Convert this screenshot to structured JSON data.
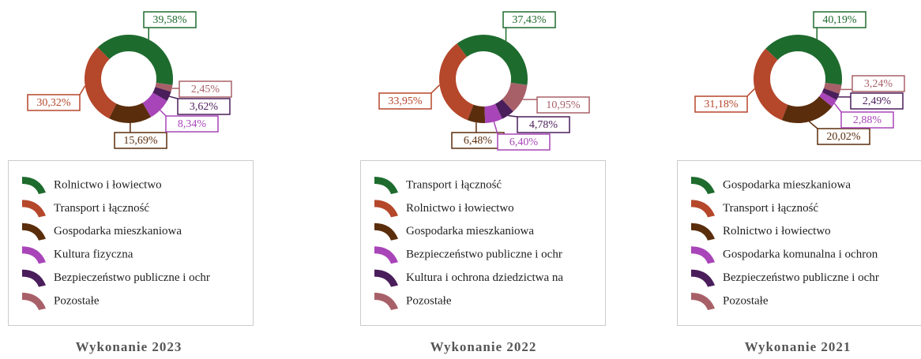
{
  "chart_data": [
    {
      "type": "pie",
      "title": "Wykonanie 2023",
      "categories": [
        "Rolnictwo i łowiectwo",
        "Transport i łączność",
        "Gospodarka mieszkaniowa",
        "Kultura fizyczna",
        "Bezpieczeństwo publiczne i ochr",
        "Pozostałe"
      ],
      "values": [
        39.58,
        30.32,
        15.69,
        8.34,
        3.62,
        2.45
      ],
      "value_labels": [
        "39,58%",
        "30,32%",
        "15,69%",
        "8,34%",
        "3,62%",
        "2,45%"
      ],
      "colors": [
        "#1e6b2e",
        "#b5472b",
        "#5a2d0c",
        "#a845b8",
        "#4a1e5a",
        "#a86068"
      ]
    },
    {
      "type": "pie",
      "title": "Wykonanie 2022",
      "categories": [
        "Transport i łączność",
        "Rolnictwo i łowiectwo",
        "Gospodarka mieszkaniowa",
        "Bezpieczeństwo publiczne i ochr",
        "Kultura i ochrona dziedzictwa na",
        "Pozostałe"
      ],
      "values": [
        37.43,
        33.95,
        6.48,
        6.4,
        4.78,
        10.95
      ],
      "value_labels": [
        "37,43%",
        "33,95%",
        "6,48%",
        "6,40%",
        "4,78%",
        "10,95%"
      ],
      "colors": [
        "#1e6b2e",
        "#b5472b",
        "#5a2d0c",
        "#a845b8",
        "#4a1e5a",
        "#a86068"
      ]
    },
    {
      "type": "pie",
      "title": "Wykonanie 2021",
      "categories": [
        "Gospodarka mieszkaniowa",
        "Transport i łączność",
        "Rolnictwo i łowiectwo",
        "Gospodarka komunalna i ochron",
        "Bezpieczeństwo publiczne i ochr",
        "Pozostałe"
      ],
      "values": [
        40.19,
        31.18,
        20.02,
        2.88,
        2.49,
        3.24
      ],
      "value_labels": [
        "40,19%",
        "31,18%",
        "20,02%",
        "2,88%",
        "2,49%",
        "3,24%"
      ],
      "colors": [
        "#1e6b2e",
        "#b5472b",
        "#5a2d0c",
        "#a845b8",
        "#4a1e5a",
        "#a86068"
      ]
    }
  ]
}
